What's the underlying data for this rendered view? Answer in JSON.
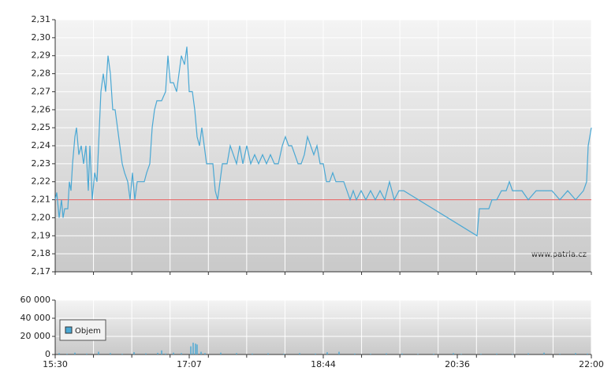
{
  "chart_data": [
    {
      "type": "line",
      "color": "#4aa8d4",
      "watermark": "www.patria.cz",
      "reference_line": 2.21,
      "reference_color": "#e86a6a",
      "xlim": [
        0,
        680
      ],
      "ylim": [
        2.17,
        2.31
      ],
      "yticks": [
        {
          "value": 2.17,
          "label": "2,17"
        },
        {
          "value": 2.18,
          "label": "2,18"
        },
        {
          "value": 2.19,
          "label": "2,19"
        },
        {
          "value": 2.2,
          "label": "2,20"
        },
        {
          "value": 2.21,
          "label": "2,21"
        },
        {
          "value": 2.22,
          "label": "2,22"
        },
        {
          "value": 2.23,
          "label": "2,23"
        },
        {
          "value": 2.24,
          "label": "2,24"
        },
        {
          "value": 2.25,
          "label": "2,25"
        },
        {
          "value": 2.26,
          "label": "2,26"
        },
        {
          "value": 2.27,
          "label": "2,27"
        },
        {
          "value": 2.28,
          "label": "2,28"
        },
        {
          "value": 2.29,
          "label": "2,29"
        },
        {
          "value": 2.3,
          "label": "2,30"
        },
        {
          "value": 2.31,
          "label": "2,31"
        }
      ],
      "x": [
        0,
        2,
        5,
        8,
        10,
        12,
        16,
        18,
        20,
        22,
        25,
        27,
        30,
        33,
        36,
        39,
        42,
        44,
        47,
        50,
        53,
        56,
        58,
        61,
        64,
        67,
        70,
        73,
        76,
        79,
        82,
        85,
        88,
        92,
        95,
        98,
        101,
        104,
        108,
        113,
        116,
        120,
        123,
        126,
        129,
        135,
        140,
        143,
        146,
        150,
        154,
        157,
        160,
        164,
        167,
        170,
        174,
        177,
        180,
        183,
        186,
        189,
        192,
        196,
        200,
        203,
        206,
        209,
        212,
        218,
        222,
        226,
        230,
        234,
        238,
        243,
        248,
        253,
        258,
        263,
        268,
        273,
        278,
        283,
        288,
        292,
        296,
        300,
        304,
        308,
        312,
        316,
        320,
        324,
        328,
        332,
        336,
        340,
        344,
        348,
        352,
        356,
        360,
        366,
        370,
        374,
        378,
        382,
        388,
        394,
        400,
        406,
        412,
        418,
        424,
        430,
        436,
        442,
        535,
        538,
        550,
        554,
        560,
        566,
        572,
        576,
        580,
        586,
        592,
        600,
        610,
        620,
        630,
        640,
        650,
        660,
        670,
        674,
        676,
        678,
        680
      ],
      "values": [
        2.21,
        2.214,
        2.2,
        2.21,
        2.2,
        2.205,
        2.205,
        2.22,
        2.215,
        2.23,
        2.245,
        2.25,
        2.235,
        2.24,
        2.23,
        2.24,
        2.215,
        2.24,
        2.21,
        2.225,
        2.22,
        2.25,
        2.27,
        2.28,
        2.27,
        2.29,
        2.28,
        2.26,
        2.26,
        2.25,
        2.24,
        2.23,
        2.225,
        2.22,
        2.21,
        2.225,
        2.21,
        2.22,
        2.22,
        2.22,
        2.225,
        2.23,
        2.25,
        2.26,
        2.265,
        2.265,
        2.27,
        2.29,
        2.275,
        2.275,
        2.27,
        2.28,
        2.29,
        2.285,
        2.295,
        2.27,
        2.27,
        2.26,
        2.245,
        2.24,
        2.25,
        2.24,
        2.23,
        2.23,
        2.23,
        2.215,
        2.21,
        2.22,
        2.23,
        2.23,
        2.24,
        2.235,
        2.23,
        2.24,
        2.23,
        2.24,
        2.23,
        2.235,
        2.23,
        2.235,
        2.23,
        2.235,
        2.23,
        2.23,
        2.24,
        2.245,
        2.24,
        2.24,
        2.235,
        2.23,
        2.23,
        2.235,
        2.245,
        2.24,
        2.235,
        2.24,
        2.23,
        2.23,
        2.22,
        2.22,
        2.225,
        2.22,
        2.22,
        2.22,
        2.215,
        2.21,
        2.215,
        2.21,
        2.215,
        2.21,
        2.215,
        2.21,
        2.215,
        2.21,
        2.22,
        2.21,
        2.215,
        2.215,
        2.19,
        2.205,
        2.205,
        2.21,
        2.21,
        2.215,
        2.215,
        2.22,
        2.215,
        2.215,
        2.215,
        2.21,
        2.215,
        2.215,
        2.215,
        2.21,
        2.215,
        2.21,
        2.215,
        2.22,
        2.24,
        2.245,
        2.25
      ]
    },
    {
      "type": "bar",
      "xlim": [
        0,
        680
      ],
      "xticks": [
        {
          "value": 0,
          "label": "15:30"
        },
        {
          "value": 170,
          "label": "17:07"
        },
        {
          "value": 340,
          "label": "18:44"
        },
        {
          "value": 510,
          "label": "20:36"
        },
        {
          "value": 680,
          "label": "22:00"
        }
      ],
      "ylim": [
        0,
        60000
      ],
      "yticks": [
        0,
        {
          "value": 20000,
          "label": "20 000"
        },
        {
          "value": 40000,
          "label": "40 000"
        },
        {
          "value": 60000,
          "label": "60 000"
        }
      ],
      "x": [
        5,
        15,
        25,
        40,
        55,
        70,
        85,
        100,
        115,
        130,
        135,
        140,
        150,
        160,
        172,
        175,
        178,
        180,
        185,
        190,
        210,
        230,
        250,
        270,
        290,
        310,
        330,
        345,
        360,
        380,
        400,
        420,
        440,
        460,
        480,
        505,
        515,
        540,
        560,
        580,
        600,
        620,
        640,
        660,
        675
      ],
      "series": [
        {
          "name": "Objem",
          "color": "#4aa8d4",
          "values": [
            1500,
            800,
            2000,
            1000,
            3000,
            1500,
            800,
            2500,
            1200,
            1800,
            4500,
            1000,
            2000,
            1500,
            9000,
            13000,
            12000,
            11000,
            3000,
            1500,
            2000,
            1500,
            1000,
            1200,
            800,
            1500,
            1000,
            2500,
            3000,
            1000,
            800,
            1200,
            1000,
            600,
            800,
            1500,
            700,
            800,
            1000,
            600,
            1200,
            2000,
            800,
            1500,
            1000
          ]
        }
      ]
    }
  ]
}
